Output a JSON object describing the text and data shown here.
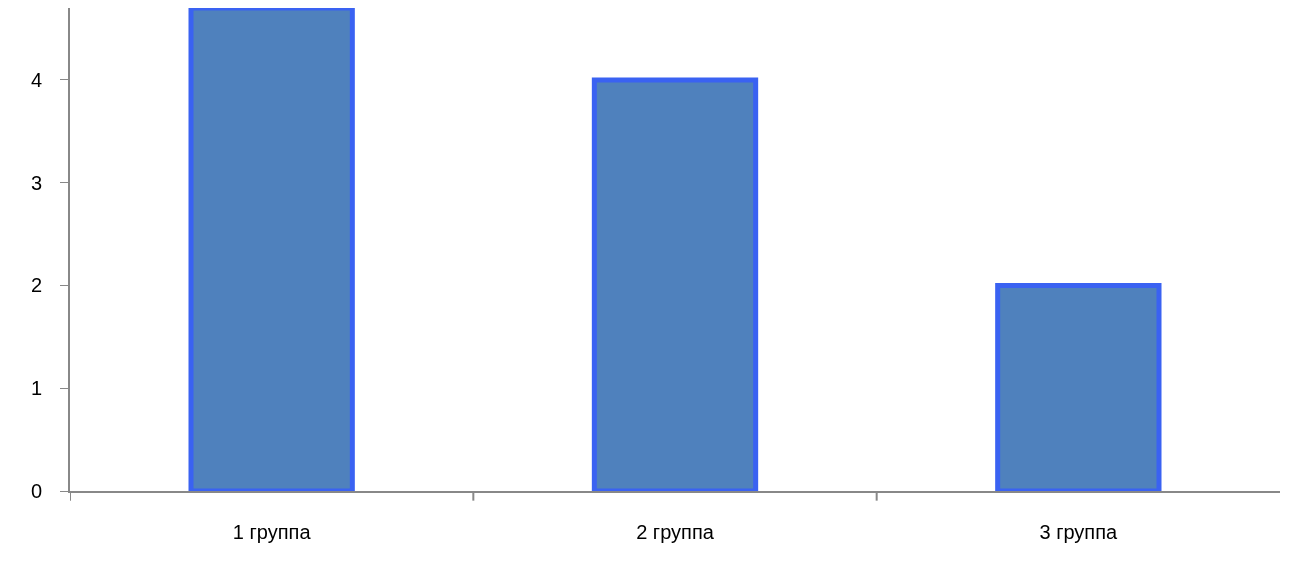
{
  "chart_data": {
    "type": "bar",
    "categories": [
      "1 группа",
      "2 группа",
      "3 группа"
    ],
    "values": [
      4.7,
      4,
      2
    ],
    "color": "#4f81bd",
    "ylim": [
      0,
      4.7
    ],
    "yticks": [
      0,
      1,
      2,
      3,
      4
    ],
    "grid": false
  }
}
